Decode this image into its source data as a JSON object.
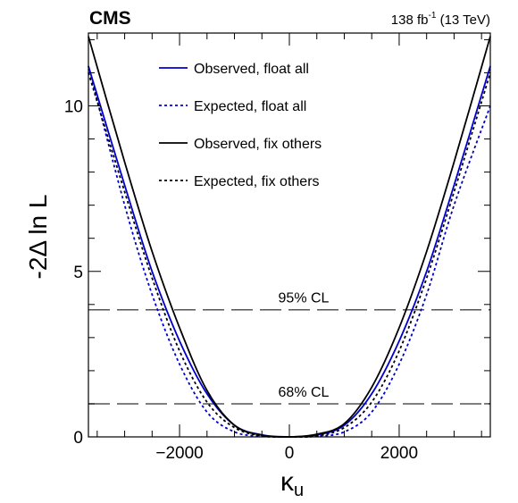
{
  "header": {
    "experiment": "CMS",
    "lumi_value": "138 fb",
    "lumi_exp": "-1",
    "lumi_energy": " (13 TeV)"
  },
  "chart_data": {
    "type": "line",
    "xlabel_main": "κ",
    "xlabel_sub": "u",
    "ylabel": "-2Δ ln L",
    "xlim": [
      -3660,
      3660
    ],
    "ylim": [
      0,
      12.2
    ],
    "x_ticks": [
      -2000,
      0,
      2000
    ],
    "x_tick_labels": [
      "−2000",
      "0",
      "2000"
    ],
    "y_ticks": [
      0,
      5,
      10
    ],
    "y_tick_labels": [
      "0",
      "5",
      "10"
    ],
    "grid": false,
    "legend_position": "top-left",
    "reference_lines": [
      {
        "name": "68% CL",
        "y": 1.0
      },
      {
        "name": "95% CL",
        "y": 3.84
      }
    ],
    "series": [
      {
        "name": "Observed, float all",
        "color": "#0000cc",
        "style": "solid",
        "x": [
          -3660,
          -3000,
          -2500,
          -2000,
          -1500,
          -1000,
          -500,
          0,
          500,
          1000,
          1500,
          2000,
          2500,
          3000,
          3660
        ],
        "y": [
          11.2,
          7.6,
          5.0,
          2.9,
          1.3,
          0.35,
          0.06,
          0.0,
          0.06,
          0.35,
          1.3,
          2.9,
          5.0,
          7.6,
          11.2
        ]
      },
      {
        "name": "Expected, float all",
        "color": "#0000cc",
        "style": "dotted",
        "x": [
          -3660,
          -3000,
          -2500,
          -2000,
          -1500,
          -1000,
          -500,
          0,
          500,
          1000,
          1500,
          2000,
          2500,
          3000,
          3660
        ],
        "y": [
          11.2,
          7.0,
          4.3,
          2.2,
          0.75,
          0.15,
          0.02,
          0.0,
          0.02,
          0.15,
          0.75,
          2.2,
          4.3,
          7.0,
          10.0
        ]
      },
      {
        "name": "Observed, fix others",
        "color": "#000000",
        "style": "solid",
        "x": [
          -3660,
          -3000,
          -2500,
          -2000,
          -1500,
          -1000,
          -500,
          0,
          500,
          1000,
          1500,
          2000,
          2500,
          3000,
          3660
        ],
        "y": [
          12.1,
          8.3,
          5.6,
          3.3,
          1.4,
          0.35,
          0.05,
          0.0,
          0.08,
          0.4,
          1.5,
          3.3,
          5.6,
          8.3,
          12.1
        ]
      },
      {
        "name": "Expected, fix others",
        "color": "#000000",
        "style": "dotted",
        "x": [
          -3660,
          -3000,
          -2500,
          -2000,
          -1500,
          -1000,
          -500,
          0,
          500,
          1000,
          1500,
          2000,
          2500,
          3000,
          3660
        ],
        "y": [
          11.0,
          7.4,
          4.8,
          2.6,
          1.05,
          0.28,
          0.03,
          0.0,
          0.03,
          0.28,
          1.05,
          2.6,
          4.8,
          7.4,
          11.0
        ]
      }
    ]
  }
}
